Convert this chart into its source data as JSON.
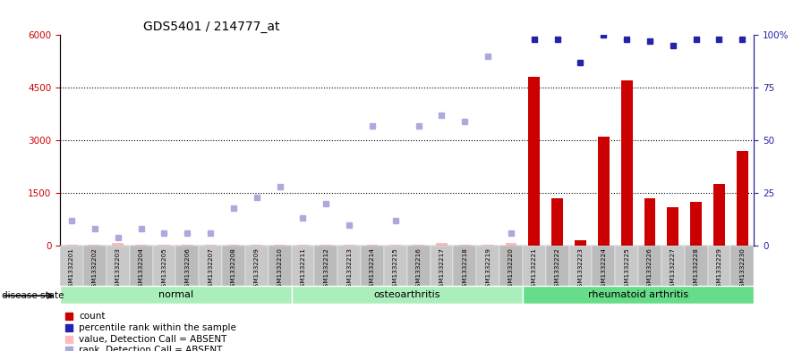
{
  "title": "GDS5401 / 214777_at",
  "samples": [
    "GSM1332201",
    "GSM1332202",
    "GSM1332203",
    "GSM1332204",
    "GSM1332205",
    "GSM1332206",
    "GSM1332207",
    "GSM1332208",
    "GSM1332209",
    "GSM1332210",
    "GSM1332211",
    "GSM1332212",
    "GSM1332213",
    "GSM1332214",
    "GSM1332215",
    "GSM1332216",
    "GSM1332217",
    "GSM1332218",
    "GSM1332219",
    "GSM1332220",
    "GSM1332221",
    "GSM1332222",
    "GSM1332223",
    "GSM1332224",
    "GSM1332225",
    "GSM1332226",
    "GSM1332227",
    "GSM1332228",
    "GSM1332229",
    "GSM1332230"
  ],
  "count_values": [
    30,
    30,
    80,
    30,
    30,
    30,
    30,
    30,
    30,
    30,
    30,
    30,
    30,
    30,
    30,
    30,
    80,
    30,
    30,
    80,
    4800,
    1350,
    150,
    3100,
    4700,
    1350,
    1100,
    1250,
    1750,
    2700
  ],
  "count_absent": [
    true,
    true,
    true,
    true,
    true,
    true,
    true,
    true,
    true,
    true,
    true,
    true,
    true,
    true,
    true,
    true,
    true,
    true,
    true,
    true,
    false,
    false,
    false,
    false,
    false,
    false,
    false,
    false,
    false,
    false
  ],
  "rank_values_pct": [
    12,
    8,
    4,
    8,
    6,
    6,
    6,
    18,
    23,
    28,
    13,
    20,
    10,
    57,
    12,
    57,
    62,
    59,
    90,
    6,
    98,
    98,
    87,
    100,
    98,
    97,
    95,
    98,
    98,
    98
  ],
  "rank_absent": [
    true,
    true,
    true,
    true,
    true,
    true,
    true,
    true,
    true,
    true,
    true,
    true,
    true,
    true,
    true,
    true,
    true,
    true,
    true,
    true,
    false,
    false,
    false,
    false,
    false,
    false,
    false,
    false,
    false,
    false
  ],
  "groups": [
    {
      "label": "normal",
      "start": 0,
      "end": 10
    },
    {
      "label": "osteoarthritis",
      "start": 10,
      "end": 20
    },
    {
      "label": "rheumatoid arthritis",
      "start": 20,
      "end": 30
    }
  ],
  "group_colors": [
    "#AAEEBB",
    "#AAEEBB",
    "#66DD88"
  ],
  "left_ylim": [
    0,
    6000
  ],
  "right_ylim": [
    0,
    100
  ],
  "left_yticks": [
    0,
    1500,
    3000,
    4500,
    6000
  ],
  "right_yticks": [
    0,
    25,
    50,
    75,
    100
  ],
  "right_yticklabels": [
    "0",
    "25",
    "50",
    "75",
    "100%"
  ],
  "count_color": "#CC0000",
  "count_absent_color": "#FFBBBB",
  "rank_color": "#2222AA",
  "rank_absent_color": "#AAAADD",
  "bar_width": 0.5,
  "legend_items": [
    {
      "label": "count",
      "color": "#CC0000"
    },
    {
      "label": "percentile rank within the sample",
      "color": "#2222AA"
    },
    {
      "label": "value, Detection Call = ABSENT",
      "color": "#FFBBBB"
    },
    {
      "label": "rank, Detection Call = ABSENT",
      "color": "#AAAADD"
    }
  ],
  "disease_state_label": "disease state"
}
